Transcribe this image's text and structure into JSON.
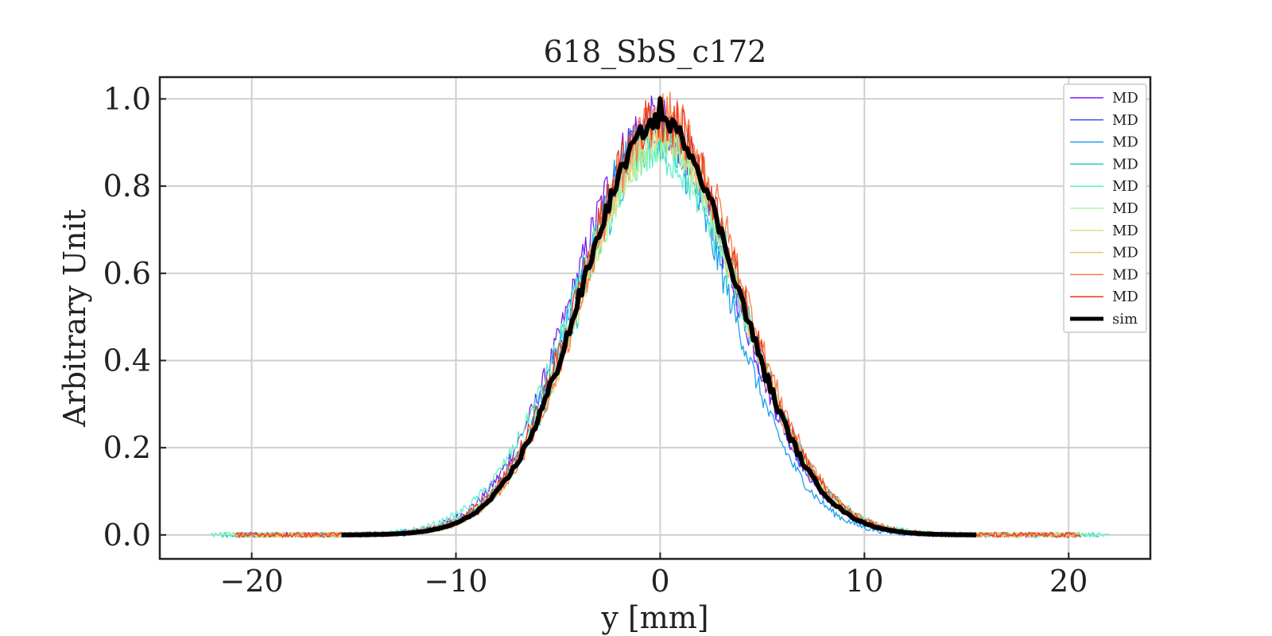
{
  "chart_data": {
    "type": "line",
    "title": "618_SbS_c172",
    "xlabel": "y [mm]",
    "ylabel": "Arbitrary Unit",
    "xlim": [
      -24.5,
      24
    ],
    "ylim": [
      -0.055,
      1.05
    ],
    "xticks": [
      -20,
      -10,
      0,
      10,
      20
    ],
    "xtick_labels": [
      "−20",
      "−10",
      "0",
      "10",
      "20"
    ],
    "yticks": [
      0.0,
      0.2,
      0.4,
      0.6,
      0.8,
      1.0
    ],
    "ytick_labels": [
      "0.0",
      "0.2",
      "0.4",
      "0.6",
      "0.8",
      "1.0"
    ],
    "grid": true,
    "legend_position": "top-right",
    "series": [
      {
        "name": "MD",
        "color": "#7a1cf2",
        "x_range": [
          -20.8,
          20.2
        ],
        "center": -0.3,
        "sigma": 3.85,
        "amp": 0.95
      },
      {
        "name": "MD",
        "color": "#3f57f7",
        "x_range": [
          -20.5,
          13.3
        ],
        "center": -0.1,
        "sigma": 3.75,
        "amp": 0.94
      },
      {
        "name": "MD",
        "color": "#1c9ff0",
        "x_range": [
          -21.0,
          13.0
        ],
        "center": -0.4,
        "sigma": 3.7,
        "amp": 0.92
      },
      {
        "name": "MD",
        "color": "#25c9c4",
        "x_range": [
          -21.5,
          21.5
        ],
        "center": 0.1,
        "sigma": 3.85,
        "amp": 0.91
      },
      {
        "name": "MD",
        "color": "#5ef2c8",
        "x_range": [
          -22.0,
          22.0
        ],
        "center": -0.2,
        "sigma": 4.05,
        "amp": 0.88
      },
      {
        "name": "MD",
        "color": "#a6f5b2",
        "x_range": [
          -21.5,
          21.0
        ],
        "center": 0.0,
        "sigma": 3.9,
        "amp": 0.9
      },
      {
        "name": "MD",
        "color": "#d5e58e",
        "x_range": [
          -21.0,
          20.5
        ],
        "center": 0.1,
        "sigma": 3.8,
        "amp": 0.92
      },
      {
        "name": "MD",
        "color": "#f7c06a",
        "x_range": [
          -20.8,
          20.5
        ],
        "center": 0.0,
        "sigma": 3.75,
        "amp": 0.94
      },
      {
        "name": "MD",
        "color": "#fb7a47",
        "x_range": [
          -20.8,
          20.5
        ],
        "center": 0.2,
        "sigma": 3.8,
        "amp": 0.96
      },
      {
        "name": "MD",
        "color": "#ea3a1a",
        "x_range": [
          -20.8,
          20.6
        ],
        "center": 0.0,
        "sigma": 3.85,
        "amp": 0.96
      },
      {
        "name": "sim",
        "color": "#000000",
        "x_range": [
          -15.6,
          15.5
        ],
        "center": 0.0,
        "sigma": 3.75,
        "amp": 0.95,
        "peak": 1.0
      }
    ]
  }
}
